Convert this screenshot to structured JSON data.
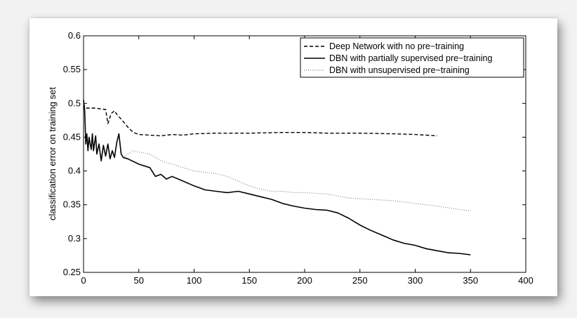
{
  "chart_data": {
    "type": "line",
    "title": "",
    "xlabel": "",
    "ylabel": "classification error on training set",
    "xlim": [
      0,
      400
    ],
    "ylim": [
      0.25,
      0.6
    ],
    "xticks": [
      0,
      50,
      100,
      150,
      200,
      250,
      300,
      350,
      400
    ],
    "yticks": [
      0.25,
      0.3,
      0.35,
      0.4,
      0.45,
      0.5,
      0.55,
      0.6
    ],
    "xtick_labels": [
      "0",
      "50",
      "100",
      "150",
      "200",
      "250",
      "300",
      "350",
      "400"
    ],
    "ytick_labels": [
      "0.25",
      "0.3",
      "0.35",
      "0.4",
      "0.45",
      "0.5",
      "0.55",
      "0.6"
    ],
    "grid": false,
    "legend_position": "top-right",
    "series": [
      {
        "name": "Deep Network with no pre−training",
        "style": "dashed",
        "color": "#000000",
        "x": [
          0,
          1,
          2,
          10,
          20,
          22,
          25,
          28,
          30,
          35,
          40,
          45,
          50,
          60,
          70,
          80,
          90,
          100,
          120,
          150,
          180,
          200,
          220,
          250,
          280,
          300,
          310,
          320
        ],
        "y": [
          0.5,
          0.495,
          0.493,
          0.493,
          0.491,
          0.47,
          0.485,
          0.489,
          0.484,
          0.475,
          0.465,
          0.457,
          0.454,
          0.453,
          0.452,
          0.454,
          0.453,
          0.455,
          0.456,
          0.456,
          0.457,
          0.457,
          0.456,
          0.456,
          0.455,
          0.454,
          0.453,
          0.452
        ]
      },
      {
        "name": "DBN with partially supervised pre−training",
        "style": "solid",
        "color": "#000000",
        "x": [
          0,
          1,
          2,
          3,
          4,
          5,
          6,
          7,
          8,
          9,
          10,
          11,
          12,
          14,
          16,
          18,
          20,
          22,
          24,
          26,
          28,
          30,
          32,
          34,
          36,
          40,
          50,
          60,
          65,
          70,
          75,
          80,
          90,
          100,
          110,
          120,
          130,
          140,
          150,
          160,
          170,
          180,
          190,
          200,
          210,
          220,
          230,
          240,
          250,
          260,
          270,
          280,
          290,
          300,
          310,
          320,
          330,
          340,
          350
        ],
        "y": [
          0.505,
          0.49,
          0.44,
          0.455,
          0.43,
          0.45,
          0.44,
          0.432,
          0.455,
          0.43,
          0.442,
          0.452,
          0.425,
          0.44,
          0.415,
          0.438,
          0.422,
          0.44,
          0.418,
          0.43,
          0.42,
          0.442,
          0.455,
          0.425,
          0.42,
          0.418,
          0.41,
          0.405,
          0.392,
          0.395,
          0.388,
          0.392,
          0.385,
          0.378,
          0.372,
          0.37,
          0.368,
          0.37,
          0.366,
          0.362,
          0.358,
          0.352,
          0.348,
          0.345,
          0.343,
          0.342,
          0.338,
          0.33,
          0.32,
          0.312,
          0.305,
          0.298,
          0.293,
          0.29,
          0.285,
          0.282,
          0.279,
          0.278,
          0.276
        ]
      },
      {
        "name": "DBN with unsupervised pre−training",
        "style": "dotted",
        "color": "#888888",
        "x": [
          35,
          40,
          45,
          50,
          60,
          70,
          80,
          90,
          100,
          110,
          120,
          130,
          140,
          150,
          160,
          170,
          180,
          190,
          200,
          220,
          240,
          260,
          280,
          300,
          320,
          340,
          350
        ],
        "y": [
          0.42,
          0.425,
          0.43,
          0.428,
          0.425,
          0.415,
          0.41,
          0.405,
          0.4,
          0.398,
          0.396,
          0.392,
          0.385,
          0.378,
          0.373,
          0.37,
          0.37,
          0.368,
          0.368,
          0.366,
          0.36,
          0.358,
          0.356,
          0.352,
          0.348,
          0.343,
          0.341
        ]
      }
    ]
  }
}
